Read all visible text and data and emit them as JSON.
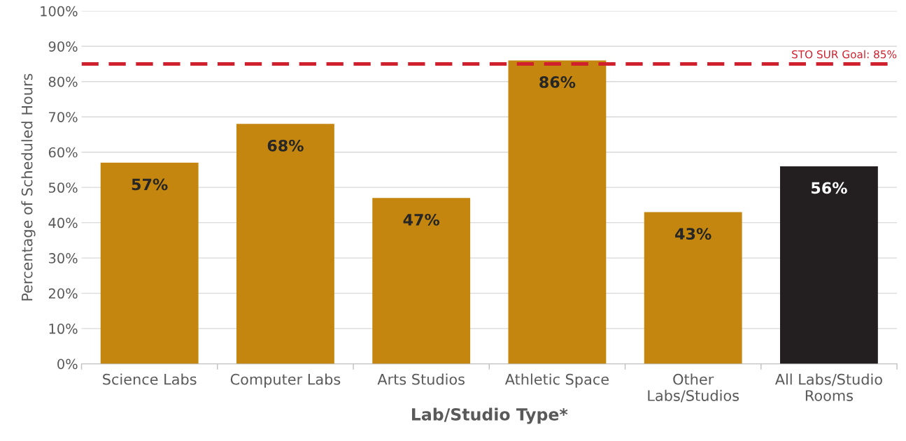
{
  "chart_data": {
    "type": "bar",
    "xlabel": "Lab/Studio Type*",
    "ylabel": "Percentage of Scheduled Hours",
    "categories": [
      "Science Labs",
      "Computer Labs",
      "Arts Studios",
      "Athletic Space",
      "Other\nLabs/Studios",
      "All Labs/Studio\nRooms"
    ],
    "values": [
      57,
      68,
      47,
      86,
      43,
      56
    ],
    "colors": [
      "#c4860f",
      "#c4860f",
      "#c4860f",
      "#c4860f",
      "#c4860f",
      "#231f20"
    ],
    "value_labels": [
      "57%",
      "68%",
      "47%",
      "86%",
      "43%",
      "56%"
    ],
    "ylim": [
      0,
      100
    ],
    "yticks": [
      {
        "value": 0,
        "label": "0%"
      },
      {
        "value": 10,
        "label": "10%"
      },
      {
        "value": 20,
        "label": "20%"
      },
      {
        "value": 30,
        "label": "30%"
      },
      {
        "value": 40,
        "label": "40%"
      },
      {
        "value": 50,
        "label": "50%"
      },
      {
        "value": 60,
        "label": "60%"
      },
      {
        "value": 70,
        "label": "70%"
      },
      {
        "value": 80,
        "label": "80%"
      },
      {
        "value": 90,
        "label": "90%"
      },
      {
        "value": 100,
        "label": "100%"
      }
    ],
    "grid": "y",
    "ref_lines": [
      {
        "axis": "y",
        "value": 85,
        "label": "STO SUR Goal: 85%",
        "color": "#d0202e",
        "line_style": "dashed"
      }
    ]
  }
}
